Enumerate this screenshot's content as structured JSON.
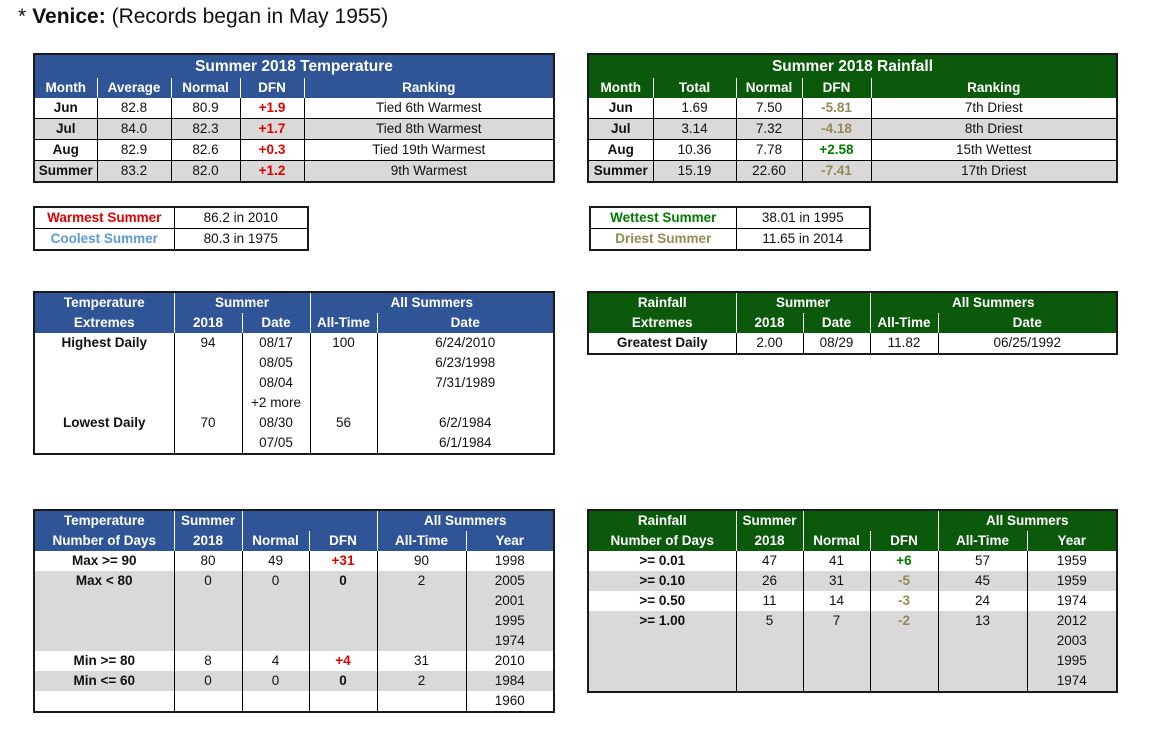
{
  "page": {
    "star": "*",
    "location": "Venice:",
    "subtitle": "(Records began in May 1955)"
  },
  "temp": {
    "title": "Summer 2018 Temperature",
    "headers": [
      "Month",
      "Average",
      "Normal",
      "DFN",
      "Ranking"
    ],
    "rows": [
      [
        "Jun",
        "82.8",
        "80.9",
        "+1.9",
        "Tied 6th Warmest"
      ],
      [
        "Jul",
        "84.0",
        "82.3",
        "+1.7",
        "Tied 8th Warmest"
      ],
      [
        "Aug",
        "82.9",
        "82.6",
        "+0.3",
        "Tied 19th Warmest"
      ],
      [
        "Summer",
        "83.2",
        "82.0",
        "+1.2",
        "9th Warmest"
      ]
    ]
  },
  "rain": {
    "title": "Summer 2018 Rainfall",
    "headers": [
      "Month",
      "Total",
      "Normal",
      "DFN",
      "Ranking"
    ],
    "rows": [
      [
        "Jun",
        "1.69",
        "7.50",
        "-5.81",
        "7th Driest"
      ],
      [
        "Jul",
        "3.14",
        "7.32",
        "-4.18",
        "8th Driest"
      ],
      [
        "Aug",
        "10.36",
        "7.78",
        "+2.58",
        "15th Wettest"
      ],
      [
        "Summer",
        "15.19",
        "22.60",
        "-7.41",
        "17th Driest"
      ]
    ]
  },
  "temp_records": {
    "warmest_label": "Warmest Summer",
    "warmest_value": "86.2 in 2010",
    "coolest_label": "Coolest Summer",
    "coolest_value": "80.3 in 1975"
  },
  "rain_records": {
    "wettest_label": "Wettest Summer",
    "wettest_value": "38.01 in 1995",
    "driest_label": "Driest Summer",
    "driest_value": "11.65 in 2014"
  },
  "temp_extremes": {
    "h1": "Temperature",
    "h2": "Extremes",
    "summer": "Summer",
    "all": "All Summers",
    "y2018": "2018",
    "date": "Date",
    "alltime": "All-Time",
    "date2": "Date",
    "highest": "Highest Daily",
    "high_val": "94",
    "high_dates": [
      "08/17",
      "08/05",
      "08/04",
      "+2 more"
    ],
    "high_alltime": "100",
    "high_at_dates": [
      "6/24/2010",
      "6/23/1998",
      "7/31/1989"
    ],
    "lowest": "Lowest Daily",
    "low_val": "70",
    "low_dates": [
      "08/30",
      "07/05"
    ],
    "low_alltime": "56",
    "low_at_dates": [
      "6/2/1984",
      "6/1/1984"
    ]
  },
  "rain_extremes": {
    "h1": "Rainfall",
    "h2": "Extremes",
    "summer": "Summer",
    "all": "All Summers",
    "y2018": "2018",
    "date": "Date",
    "alltime": "All-Time",
    "date2": "Date",
    "greatest": "Greatest Daily",
    "g_val": "2.00",
    "g_date": "08/29",
    "g_alltime": "11.82",
    "g_at_date": "06/25/1992"
  },
  "temp_days": {
    "h1": "Temperature",
    "h2": "Number of Days",
    "summer": "Summer",
    "y2018": "2018",
    "normal": "Normal",
    "dfn": "DFN",
    "all": "All Summers",
    "alltime": "All-Time",
    "year": "Year",
    "rows": [
      {
        "label": "Max >= 90",
        "v2018": "80",
        "normal": "49",
        "dfn": "+31",
        "alltime": "90",
        "years": [
          "1998"
        ]
      },
      {
        "label": "Max < 80",
        "v2018": "0",
        "normal": "0",
        "dfn": "0",
        "alltime": "2",
        "years": [
          "2005",
          "2001",
          "1995",
          "1974"
        ]
      },
      {
        "label": "Min >= 80",
        "v2018": "8",
        "normal": "4",
        "dfn": "+4",
        "alltime": "31",
        "years": [
          "2010"
        ]
      },
      {
        "label": "Min <= 60",
        "v2018": "0",
        "normal": "0",
        "dfn": "0",
        "alltime": "2",
        "years": [
          "1984",
          "1960"
        ]
      }
    ]
  },
  "rain_days": {
    "h1": "Rainfall",
    "h2": "Number of Days",
    "summer": "Summer",
    "y2018": "2018",
    "normal": "Normal",
    "dfn": "DFN",
    "all": "All Summers",
    "alltime": "All-Time",
    "year": "Year",
    "rows": [
      {
        "label": ">= 0.01",
        "v2018": "47",
        "normal": "41",
        "dfn": "+6",
        "alltime": "57",
        "years": [
          "1959"
        ]
      },
      {
        "label": ">= 0.10",
        "v2018": "26",
        "normal": "31",
        "dfn": "-5",
        "alltime": "45",
        "years": [
          "1959"
        ]
      },
      {
        "label": ">= 0.50",
        "v2018": "11",
        "normal": "14",
        "dfn": "-3",
        "alltime": "24",
        "years": [
          "1974"
        ]
      },
      {
        "label": ">= 1.00",
        "v2018": "5",
        "normal": "7",
        "dfn": "-2",
        "alltime": "13",
        "years": [
          "2012",
          "2003",
          "1995",
          "1974"
        ]
      }
    ]
  },
  "colors": {
    "blue_header": "#2f5597",
    "green_header": "#0b5a0b",
    "red": "#e00000",
    "tan": "#948a54",
    "green": "#007a00",
    "light_blue": "#5b9bd5",
    "gray_row": "#d9d9d9"
  }
}
